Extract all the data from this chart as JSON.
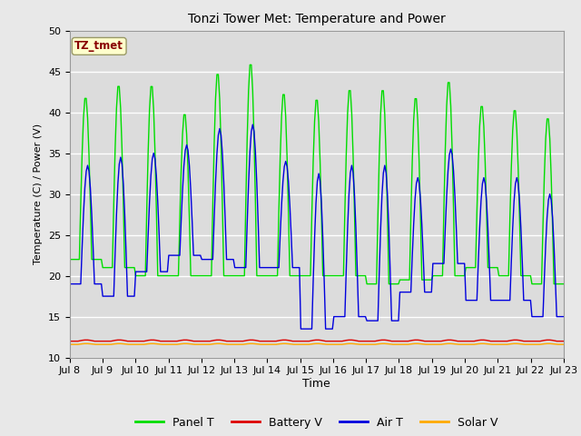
{
  "title": "Tonzi Tower Met: Temperature and Power",
  "xlabel": "Time",
  "ylabel": "Temperature (C) / Power (V)",
  "ylim": [
    10,
    50
  ],
  "fig_bg_color": "#e8e8e8",
  "plot_bg_color": "#dcdcdc",
  "annotation_text": "TZ_tmet",
  "annotation_bg": "#ffffcc",
  "annotation_fg": "#880000",
  "x_tick_labels": [
    "Jul 8",
    "Jul 9",
    "Jul 10",
    "Jul 11",
    "Jul 12",
    "Jul 13",
    "Jul 14",
    "Jul 15",
    "Jul 16",
    "Jul 17",
    "Jul 18",
    "Jul 19",
    "Jul 20",
    "Jul 21",
    "Jul 22",
    "Jul 23"
  ],
  "legend_labels": [
    "Panel T",
    "Battery V",
    "Air T",
    "Solar V"
  ],
  "panel_t_color": "#00dd00",
  "battery_v_color": "#dd0000",
  "air_t_color": "#0000dd",
  "solar_v_color": "#ffaa00",
  "grid_color": "#ffffff",
  "n_days": 15,
  "panel_peaks": [
    42,
    43.5,
    43.5,
    40,
    45,
    46.2,
    42.5,
    41.8,
    43,
    43,
    42,
    44,
    41,
    40.5,
    39.5,
    38.5
  ],
  "panel_lows": [
    22,
    21,
    20,
    20,
    20,
    20,
    20,
    20,
    20,
    19,
    19.5,
    20,
    21,
    20,
    19,
    20
  ],
  "air_peaks": [
    33.5,
    34.5,
    35,
    36,
    38,
    38.5,
    34,
    32.5,
    33.5,
    33.5,
    32,
    35.5,
    32,
    32,
    30,
    30
  ],
  "air_lows": [
    19,
    17.5,
    20.5,
    22.5,
    22,
    21,
    21,
    13.5,
    15,
    14.5,
    18,
    21.5,
    17,
    17,
    15,
    16.5
  ]
}
